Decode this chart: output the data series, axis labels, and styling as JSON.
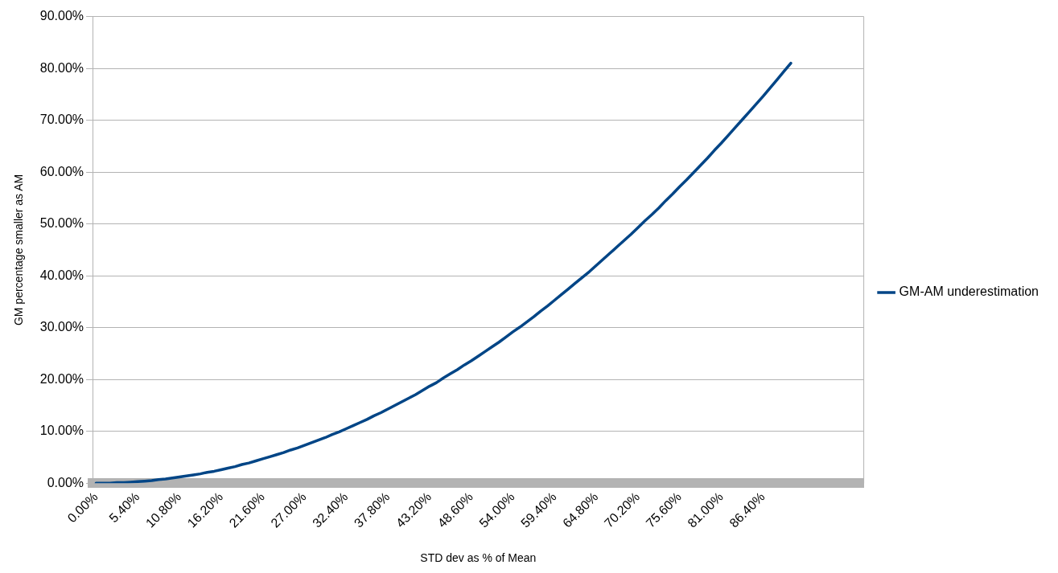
{
  "chart_data": {
    "type": "line",
    "xlabel": "STD dev as % of Mean",
    "ylabel": "GM percentage smaller as AM",
    "categories": [
      "0.00%",
      null,
      null,
      null,
      null,
      null,
      "5.40%",
      null,
      null,
      null,
      null,
      null,
      "10.80%",
      null,
      null,
      null,
      null,
      null,
      "16.20%",
      null,
      null,
      null,
      null,
      null,
      "21.60%",
      null,
      null,
      null,
      null,
      null,
      "27.00%",
      null,
      null,
      null,
      null,
      null,
      "32.40%",
      null,
      null,
      null,
      null,
      null,
      "37.80%",
      null,
      null,
      null,
      null,
      null,
      "43.20%",
      null,
      null,
      null,
      null,
      null,
      "48.60%",
      null,
      null,
      null,
      null,
      null,
      "54.00%",
      null,
      null,
      null,
      null,
      null,
      "59.40%",
      null,
      null,
      null,
      null,
      null,
      "64.80%",
      null,
      null,
      null,
      null,
      null,
      "70.20%",
      null,
      null,
      null,
      null,
      null,
      "75.60%",
      null,
      null,
      null,
      null,
      null,
      "81.00%",
      null,
      null,
      null,
      null,
      null,
      "86.40%",
      null,
      null,
      null,
      null,
      null,
      null,
      null,
      null,
      null,
      null,
      null,
      null,
      null,
      null
    ],
    "series": [
      {
        "name": "GM-AM underestimation",
        "color": "#004586",
        "values": [
          0,
          0.0,
          0.0,
          0.1,
          0.1,
          0.2,
          0.3,
          0.4,
          0.5,
          0.7,
          0.8,
          1.0,
          1.2,
          1.4,
          1.6,
          1.8,
          2.1,
          2.3,
          2.6,
          2.9,
          3.2,
          3.6,
          3.9,
          4.3,
          4.7,
          5.1,
          5.5,
          5.9,
          6.4,
          6.8,
          7.3,
          7.8,
          8.3,
          8.8,
          9.4,
          9.9,
          10.5,
          11.1,
          11.7,
          12.3,
          13.0,
          13.6,
          14.3,
          15.0,
          15.7,
          16.4,
          17.1,
          17.9,
          18.7,
          19.4,
          20.3,
          21.1,
          21.9,
          22.8,
          23.6,
          24.5,
          25.4,
          26.3,
          27.2,
          28.2,
          29.2,
          30.1,
          31.1,
          32.1,
          33.2,
          34.2,
          35.3,
          36.4,
          37.5,
          38.6,
          39.7,
          40.8,
          42.0,
          43.2,
          44.4,
          45.6,
          46.8,
          48.0,
          49.3,
          50.6,
          51.8,
          53.1,
          54.5,
          55.8,
          57.2,
          58.5,
          59.9,
          61.3,
          62.7,
          64.2,
          65.6,
          67.1,
          68.6,
          70.1,
          71.6,
          73.1,
          74.6,
          76.2,
          77.8,
          79.4,
          81.0,
          null,
          null,
          null,
          null,
          null,
          null,
          null,
          null,
          null,
          null
        ]
      }
    ],
    "ylim": [
      0,
      90
    ],
    "yticks": [
      {
        "value": 0,
        "label": "0.00%"
      },
      {
        "value": 10,
        "label": "10.00%"
      },
      {
        "value": 20,
        "label": "20.00%"
      },
      {
        "value": 30,
        "label": "30.00%"
      },
      {
        "value": 40,
        "label": "40.00%"
      },
      {
        "value": 50,
        "label": "50.00%"
      },
      {
        "value": 60,
        "label": "60.00%"
      },
      {
        "value": 70,
        "label": "70.00%"
      },
      {
        "value": 80,
        "label": "80.00%"
      },
      {
        "value": 90,
        "label": "90.00%"
      }
    ],
    "grid": "y",
    "legend": "right",
    "marker": "none",
    "line_style": "solid"
  }
}
